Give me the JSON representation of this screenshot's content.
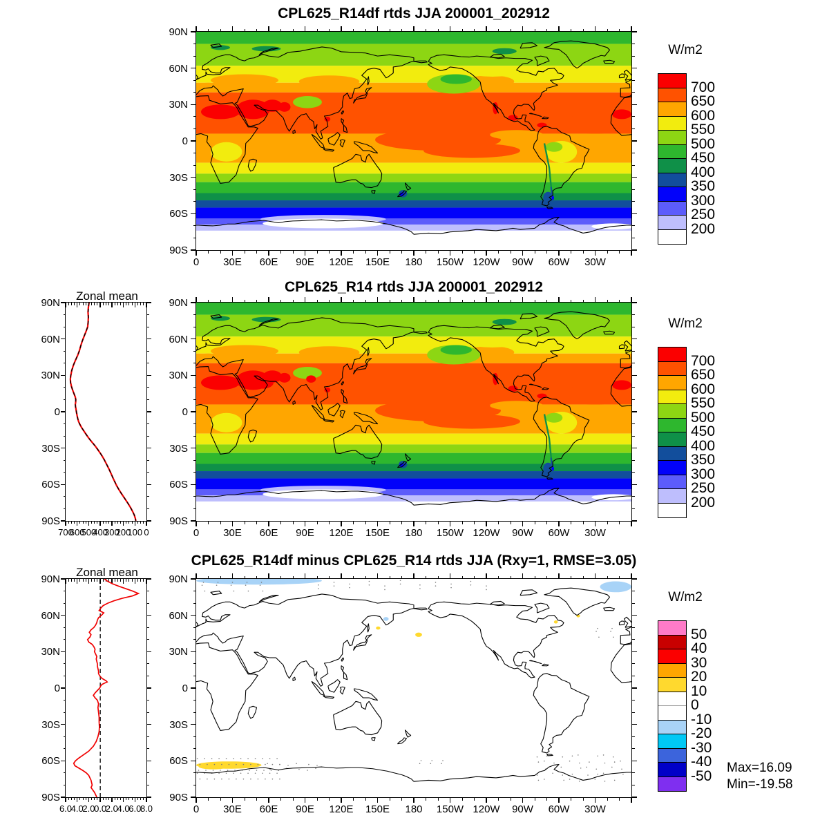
{
  "figure": {
    "panels": [
      {
        "title": "CPL625_R14df rtds JJA 200001_202912",
        "units": "W/m2"
      },
      {
        "title": "CPL625_R14 rtds JJA 200001_202912",
        "units": "W/m2",
        "zonal_title": "Zonal mean"
      },
      {
        "title": "CPL625_R14df minus CPL625_R14 rtds JJA (Rxy=1, RMSE=3.05)",
        "units": "W/m2",
        "zonal_title": "Zonal mean",
        "max_label": "Max=16.09",
        "min_label": "Min=-19.58"
      }
    ]
  },
  "axes": {
    "lon_labels": [
      "0",
      "30E",
      "60E",
      "90E",
      "120E",
      "150E",
      "180",
      "150W",
      "120W",
      "90W",
      "60W",
      "30W"
    ],
    "lat_labels": [
      "90N",
      "60N",
      "30N",
      "0",
      "30S",
      "60S",
      "90S"
    ],
    "zonal_mean_xlabels": [
      "700",
      "600",
      "500",
      "400",
      "300",
      "200",
      "100",
      "0"
    ],
    "zonal_diff_xlabels": [
      "6.0",
      "4.0",
      "2.0",
      "0.0",
      "2.0",
      "4.0",
      "6.0",
      "8.0"
    ]
  },
  "colorbars": {
    "value": {
      "units": "W/m2",
      "labels": [
        "700",
        "650",
        "600",
        "550",
        "500",
        "450",
        "400",
        "350",
        "300",
        "250",
        "200"
      ],
      "colors": [
        "#fb0000",
        "#ff5200",
        "#ffa600",
        "#f2ec0e",
        "#8dd613",
        "#2eb72e",
        "#0f9048",
        "#124e9c",
        "#0202fa",
        "#5c5cfb",
        "#bebefd",
        "#ffffff"
      ]
    },
    "diff": {
      "units": "W/m2",
      "labels": [
        "50",
        "40",
        "30",
        "20",
        "10",
        "0",
        "-10",
        "-20",
        "-30",
        "-40",
        "-50"
      ],
      "colors": [
        "#ff7bc8",
        "#c80000",
        "#fb0000",
        "#ffa600",
        "#ffd92e",
        "#ffffff",
        "#ffffff",
        "#a8d3f7",
        "#00c8f5",
        "#3c64dc",
        "#0000c8",
        "#7f2ff0"
      ]
    }
  },
  "chart_data": [
    {
      "type": "heatmap",
      "subtype": "filled-contour-global-map",
      "title": "CPL625_R14df rtds JJA 200001_202912",
      "units": "W/m2",
      "levels": [
        200,
        250,
        300,
        350,
        400,
        450,
        500,
        550,
        600,
        650,
        700
      ],
      "lon_range": [
        0,
        360
      ],
      "lat_range": [
        -90,
        90
      ],
      "lat_bands": [
        [
          90,
          80,
          470
        ],
        [
          80,
          62,
          520
        ],
        [
          62,
          48,
          570
        ],
        [
          48,
          40,
          620
        ],
        [
          40,
          6,
          670
        ],
        [
          6,
          -18,
          620
        ],
        [
          -18,
          -27,
          570
        ],
        [
          -27,
          -34,
          520
        ],
        [
          -34,
          -43,
          470
        ],
        [
          -43,
          -49,
          420
        ],
        [
          -49,
          -55,
          370
        ],
        [
          -55,
          -64,
          320
        ],
        [
          -64,
          -69,
          270
        ],
        [
          -69,
          -74,
          220
        ],
        [
          -74,
          -90,
          170
        ]
      ],
      "features": [
        [
          200,
          1,
          52,
          9,
          670
        ],
        [
          228,
          -8,
          40,
          6,
          670
        ],
        [
          330,
          14,
          30,
          8,
          670
        ],
        [
          265,
          5,
          22,
          4,
          620
        ],
        [
          40,
          50,
          28,
          5,
          620
        ],
        [
          110,
          49,
          25,
          5,
          620
        ],
        [
          243,
          49,
          20,
          5,
          620
        ],
        [
          10,
          45,
          10,
          3,
          620
        ],
        [
          302,
          -9,
          13,
          9,
          570
        ],
        [
          25,
          -9,
          13,
          8,
          570
        ],
        [
          105,
          58,
          28,
          3.5,
          570
        ],
        [
          245,
          56,
          18,
          3,
          570
        ],
        [
          25,
          59,
          12,
          3,
          570
        ],
        [
          213,
          47,
          22,
          8,
          520
        ],
        [
          92,
          32,
          12,
          5,
          520
        ],
        [
          296,
          -5,
          7,
          4,
          520
        ],
        [
          215,
          51,
          13,
          4,
          470
        ],
        [
          58,
          76,
          12,
          2.2,
          420
        ],
        [
          20,
          77,
          8,
          2,
          420
        ],
        [
          255,
          74,
          10,
          2.5,
          420
        ],
        [
          171,
          -43.5,
          3.5,
          3,
          370
        ],
        [
          291,
          -47,
          4,
          5,
          370
        ],
        [
          170,
          -44,
          1.8,
          1.5,
          320
        ],
        [
          105,
          -64.5,
          52,
          3.5,
          220
        ],
        [
          105,
          -68,
          50,
          4,
          170
        ],
        [
          345,
          -70.5,
          18,
          2.5,
          170
        ],
        [
          20,
          24,
          16,
          6,
          720
        ],
        [
          47,
          26,
          14,
          8,
          720
        ],
        [
          63,
          29,
          8,
          5,
          720
        ],
        [
          352,
          22,
          8,
          4,
          720
        ],
        [
          73,
          28,
          5,
          4,
          720
        ],
        [
          247.5,
          27,
          2.2,
          5,
          720
        ],
        [
          262,
          19,
          4,
          2.5,
          720
        ],
        [
          286,
          13,
          4,
          2,
          720
        ],
        [
          108.5,
          18,
          2.5,
          2,
          720
        ]
      ]
    },
    {
      "type": "heatmap",
      "subtype": "filled-contour-global-map",
      "title": "CPL625_R14 rtds JJA 200001_202912",
      "units": "W/m2",
      "levels": [
        200,
        250,
        300,
        350,
        400,
        450,
        500,
        550,
        600,
        650,
        700
      ],
      "extra_features": [
        [
          55,
          24,
          9,
          5,
          720
        ],
        [
          95,
          27,
          4,
          3,
          720
        ]
      ]
    },
    {
      "type": "heatmap",
      "subtype": "difference-global-map",
      "title": "CPL625_R14df minus CPL625_R14 rtds JJA (Rxy=1, RMSE=3.05)",
      "units": "W/m2",
      "levels": [
        -50,
        -40,
        -30,
        -20,
        -10,
        0,
        10,
        20,
        30,
        40,
        50
      ],
      "rxy": 1,
      "rmse": 3.05,
      "max": 16.09,
      "min": -19.58,
      "features": [
        [
          52,
          88.5,
          52,
          3.2,
          -15
        ],
        [
          347,
          83.5,
          13,
          4.5,
          -15
        ],
        [
          157,
          57,
          2.2,
          1.6,
          -15
        ],
        [
          150.5,
          49.5,
          1.8,
          1.3,
          15
        ],
        [
          184,
          44,
          2.8,
          1.8,
          15
        ],
        [
          297.5,
          54.5,
          1.6,
          1.3,
          15
        ],
        [
          316,
          59.5,
          1.5,
          1.2,
          15
        ],
        [
          27,
          -63.5,
          27,
          3,
          15
        ],
        [
          14,
          -64.8,
          12,
          2.2,
          15
        ]
      ]
    },
    {
      "type": "line",
      "title": "Zonal mean",
      "xlim": [
        700,
        0
      ],
      "x_reversed": true,
      "ylim": [
        -90,
        90
      ],
      "series": [
        {
          "name": "CPL625_R14df",
          "color": "#f00000",
          "style": "solid"
        },
        {
          "name": "CPL625_R14",
          "color": "#000000",
          "style": "dashed"
        }
      ],
      "points": [
        [
          90,
          497
        ],
        [
          86,
          503
        ],
        [
          82,
          506
        ],
        [
          78,
          503
        ],
        [
          74,
          505
        ],
        [
          70,
          509
        ],
        [
          66,
          524
        ],
        [
          62,
          541
        ],
        [
          58,
          557
        ],
        [
          54,
          570
        ],
        [
          50,
          582
        ],
        [
          46,
          598
        ],
        [
          42,
          617
        ],
        [
          38,
          634
        ],
        [
          34,
          647
        ],
        [
          30,
          655
        ],
        [
          27,
          659
        ],
        [
          24,
          657
        ],
        [
          21,
          650
        ],
        [
          18,
          640
        ],
        [
          15,
          628
        ],
        [
          12,
          616
        ],
        [
          10,
          612
        ],
        [
          8,
          613
        ],
        [
          6,
          616
        ],
        [
          4,
          614
        ],
        [
          2,
          610
        ],
        [
          0,
          607
        ],
        [
          -2,
          603
        ],
        [
          -4,
          599
        ],
        [
          -6,
          594
        ],
        [
          -8,
          588
        ],
        [
          -10,
          579
        ],
        [
          -13,
          562
        ],
        [
          -16,
          541
        ],
        [
          -19,
          520
        ],
        [
          -22,
          498
        ],
        [
          -25,
          472
        ],
        [
          -28,
          446
        ],
        [
          -31,
          423
        ],
        [
          -34,
          401
        ],
        [
          -37,
          381
        ],
        [
          -40,
          363
        ],
        [
          -43,
          347
        ],
        [
          -46,
          331
        ],
        [
          -49,
          316
        ],
        [
          -52,
          302
        ],
        [
          -55,
          288
        ],
        [
          -58,
          273
        ],
        [
          -61,
          258
        ],
        [
          -64,
          240
        ],
        [
          -67,
          220
        ],
        [
          -70,
          199
        ],
        [
          -73,
          178
        ],
        [
          -76,
          157
        ],
        [
          -79,
          138
        ],
        [
          -82,
          121
        ],
        [
          -85,
          106
        ],
        [
          -88,
          96
        ],
        [
          -90,
          92
        ]
      ]
    },
    {
      "type": "line",
      "title": "Zonal mean",
      "xlim": [
        -6,
        8
      ],
      "ylim": [
        -90,
        90
      ],
      "zero_line": 0,
      "series": [
        {
          "name": "difference",
          "color": "#f00000",
          "style": "solid"
        }
      ],
      "points": [
        [
          90,
          0.7
        ],
        [
          88,
          1.3
        ],
        [
          86,
          2.1
        ],
        [
          84,
          3.2
        ],
        [
          82,
          4.4
        ],
        [
          80,
          5.6
        ],
        [
          78,
          6.6
        ],
        [
          76,
          5.6
        ],
        [
          74,
          3.8
        ],
        [
          72,
          2.4
        ],
        [
          70,
          1.3
        ],
        [
          68,
          0.5
        ],
        [
          66,
          0.1
        ],
        [
          64,
          -0.2
        ],
        [
          62,
          0.6
        ],
        [
          60,
          0.2
        ],
        [
          58,
          -0.3
        ],
        [
          56,
          -0.5
        ],
        [
          54,
          -0.6
        ],
        [
          52,
          -0.8
        ],
        [
          50,
          -1.1
        ],
        [
          48,
          -1.6
        ],
        [
          46,
          -1.9
        ],
        [
          44,
          -1.6
        ],
        [
          42,
          -1.8
        ],
        [
          40,
          -2.2
        ],
        [
          38,
          -2.0
        ],
        [
          36,
          -1.4
        ],
        [
          34,
          -1.1
        ],
        [
          32,
          -0.9
        ],
        [
          30,
          -1.0
        ],
        [
          28,
          -0.8
        ],
        [
          26,
          -0.6
        ],
        [
          24,
          -0.7
        ],
        [
          22,
          -0.6
        ],
        [
          20,
          -0.5
        ],
        [
          18,
          -0.5
        ],
        [
          16,
          -0.4
        ],
        [
          14,
          -0.3
        ],
        [
          12,
          -0.3
        ],
        [
          10,
          -0.1
        ],
        [
          8,
          0.3
        ],
        [
          6,
          1.0
        ],
        [
          5,
          1.2
        ],
        [
          4,
          0.7
        ],
        [
          3,
          0.3
        ],
        [
          2,
          0.1
        ],
        [
          1,
          0.0
        ],
        [
          0,
          -0.1
        ],
        [
          -2,
          -0.5
        ],
        [
          -4,
          -0.9
        ],
        [
          -6,
          -1.2
        ],
        [
          -8,
          -0.9
        ],
        [
          -10,
          -0.5
        ],
        [
          -13,
          -0.3
        ],
        [
          -16,
          -0.4
        ],
        [
          -20,
          -0.3
        ],
        [
          -24,
          -0.2
        ],
        [
          -28,
          -0.2
        ],
        [
          -32,
          -0.15
        ],
        [
          -36,
          -0.2
        ],
        [
          -40,
          -0.4
        ],
        [
          -44,
          -0.7
        ],
        [
          -48,
          -1.2
        ],
        [
          -52,
          -2.0
        ],
        [
          -55,
          -2.9
        ],
        [
          -58,
          -3.8
        ],
        [
          -60,
          -4.3
        ],
        [
          -62,
          -4.6
        ],
        [
          -64,
          -4.4
        ],
        [
          -66,
          -3.7
        ],
        [
          -68,
          -3.0
        ],
        [
          -70,
          -2.4
        ],
        [
          -72,
          -2.0
        ],
        [
          -74,
          -1.8
        ],
        [
          -76,
          -1.6
        ],
        [
          -78,
          -1.5
        ],
        [
          -80,
          -1.4
        ],
        [
          -82,
          -1.6
        ],
        [
          -84,
          -1.3
        ],
        [
          -86,
          -1.0
        ],
        [
          -88,
          -0.8
        ],
        [
          -90,
          -0.6
        ]
      ]
    }
  ]
}
